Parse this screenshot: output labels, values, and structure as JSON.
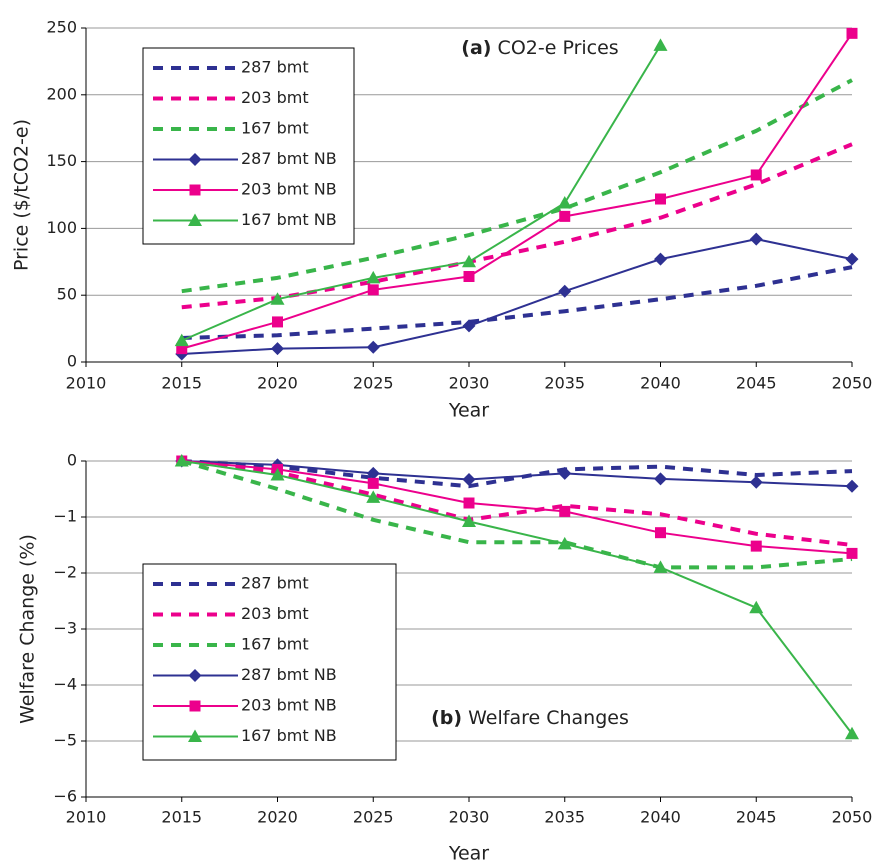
{
  "chart_data": [
    {
      "type": "line",
      "panel_label": "(a)",
      "title": "CO2-e Prices",
      "x_label": "Year",
      "y_label": "Price ($/tCO2-e)",
      "x": [
        2015,
        2020,
        2025,
        2030,
        2035,
        2040,
        2045,
        2050
      ],
      "xlim": [
        2010,
        2050
      ],
      "xticks": [
        2010,
        2015,
        2020,
        2025,
        2030,
        2035,
        2040,
        2045,
        2050
      ],
      "ylim": [
        0,
        250
      ],
      "yticks": [
        0,
        50,
        100,
        150,
        200,
        250
      ],
      "grid": true,
      "legend_position": "upper left",
      "series": [
        {
          "name": "287 bmt",
          "color": "#2e3192",
          "line_style": "dashed",
          "marker": "none",
          "values": [
            18,
            20,
            25,
            30,
            38,
            47,
            57,
            71
          ]
        },
        {
          "name": "203 bmt",
          "color": "#ec008c",
          "line_style": "dashed",
          "marker": "none",
          "values": [
            41,
            48,
            60,
            75,
            90,
            108,
            133,
            163
          ]
        },
        {
          "name": "167 bmt",
          "color": "#39b54a",
          "line_style": "dashed",
          "marker": "none",
          "values": [
            53,
            63,
            78,
            95,
            115,
            142,
            173,
            211
          ]
        },
        {
          "name": "287 bmt NB",
          "color": "#2e3192",
          "line_style": "solid",
          "marker": "diamond",
          "values": [
            6,
            10,
            11,
            27,
            53,
            77,
            92,
            77
          ]
        },
        {
          "name": "203 bmt NB",
          "color": "#ec008c",
          "line_style": "solid",
          "marker": "square",
          "values": [
            10,
            30,
            54,
            64,
            109,
            122,
            140,
            246
          ]
        },
        {
          "name": "167 bmt NB",
          "color": "#39b54a",
          "line_style": "solid",
          "marker": "triangle",
          "values": [
            16,
            47,
            63,
            75,
            119,
            237,
            null,
            null
          ]
        }
      ]
    },
    {
      "type": "line",
      "panel_label": "(b)",
      "title": "Welfare Changes",
      "x_label": "Year",
      "y_label": "Welfare Change (%)",
      "x": [
        2015,
        2020,
        2025,
        2030,
        2035,
        2040,
        2045,
        2050
      ],
      "xlim": [
        2010,
        2050
      ],
      "xticks": [
        2010,
        2015,
        2020,
        2025,
        2030,
        2035,
        2040,
        2045,
        2050
      ],
      "ylim": [
        -6,
        0
      ],
      "yticks": [
        {
          "value": -6,
          "label": "−6"
        },
        {
          "value": -5,
          "label": "−5"
        },
        {
          "value": -4,
          "label": "−4"
        },
        {
          "value": -3,
          "label": "−3"
        },
        {
          "value": -2,
          "label": "−2"
        },
        {
          "value": -1,
          "label": "−1"
        },
        0
      ],
      "grid": true,
      "legend_position": "lower left",
      "series": [
        {
          "name": "287 bmt",
          "color": "#2e3192",
          "line_style": "dashed",
          "marker": "none",
          "values": [
            0,
            -0.1,
            -0.3,
            -0.45,
            -0.15,
            -0.1,
            -0.25,
            -0.18
          ]
        },
        {
          "name": "203 bmt",
          "color": "#ec008c",
          "line_style": "dashed",
          "marker": "none",
          "values": [
            0,
            -0.2,
            -0.6,
            -1.05,
            -0.8,
            -0.95,
            -1.3,
            -1.5
          ]
        },
        {
          "name": "167 bmt",
          "color": "#39b54a",
          "line_style": "dashed",
          "marker": "none",
          "values": [
            0,
            -0.5,
            -1.05,
            -1.45,
            -1.45,
            -1.9,
            -1.9,
            -1.75
          ]
        },
        {
          "name": "287 bmt NB",
          "color": "#2e3192",
          "line_style": "solid",
          "marker": "diamond",
          "values": [
            0,
            -0.07,
            -0.22,
            -0.33,
            -0.22,
            -0.32,
            -0.38,
            -0.45
          ]
        },
        {
          "name": "203 bmt NB",
          "color": "#ec008c",
          "line_style": "solid",
          "marker": "square",
          "values": [
            0,
            -0.15,
            -0.4,
            -0.75,
            -0.9,
            -1.28,
            -1.52,
            -1.65
          ]
        },
        {
          "name": "167 bmt NB",
          "color": "#39b54a",
          "line_style": "solid",
          "marker": "triangle",
          "values": [
            0,
            -0.25,
            -0.65,
            -1.08,
            -1.48,
            -1.9,
            -2.62,
            -4.87
          ]
        }
      ]
    }
  ]
}
